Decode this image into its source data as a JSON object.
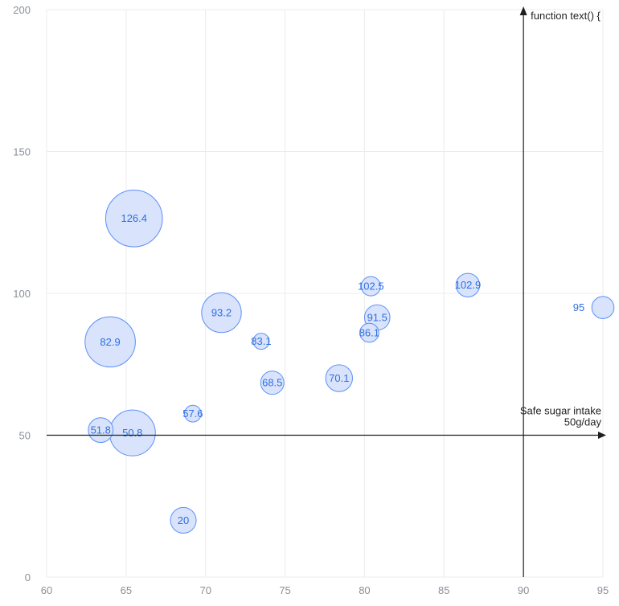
{
  "chart_data": {
    "type": "bubble",
    "title": "",
    "xlabel": "",
    "ylabel": "",
    "xlim": [
      60,
      95
    ],
    "ylim": [
      0,
      200
    ],
    "x_ticks": [
      "60",
      "65",
      "70",
      "75",
      "80",
      "85",
      "90",
      "95"
    ],
    "y_ticks": [
      "0",
      "50",
      "100",
      "150",
      "200"
    ],
    "grid": true,
    "points": [
      {
        "x": 95.0,
        "y": 95.0,
        "size": 13.8,
        "label": "95"
      },
      {
        "x": 86.5,
        "y": 102.9,
        "size": 14.7,
        "label": "102.9"
      },
      {
        "x": 80.8,
        "y": 91.5,
        "size": 15.8,
        "label": "91.5"
      },
      {
        "x": 80.4,
        "y": 102.5,
        "size": 12.0,
        "label": "102.5"
      },
      {
        "x": 80.3,
        "y": 86.1,
        "size": 11.8,
        "label": "86.1"
      },
      {
        "x": 78.4,
        "y": 70.1,
        "size": 16.7,
        "label": "70.1"
      },
      {
        "x": 74.2,
        "y": 68.5,
        "size": 14.5,
        "label": "68.5"
      },
      {
        "x": 73.5,
        "y": 83.1,
        "size": 10.0,
        "label": "83.1"
      },
      {
        "x": 71.0,
        "y": 93.2,
        "size": 24.7,
        "label": "93.2"
      },
      {
        "x": 69.2,
        "y": 57.6,
        "size": 10.4,
        "label": "57.6"
      },
      {
        "x": 68.6,
        "y": 20.0,
        "size": 16.0,
        "label": "20"
      },
      {
        "x": 65.5,
        "y": 126.4,
        "size": 35.3,
        "label": "126.4"
      },
      {
        "x": 65.4,
        "y": 50.8,
        "size": 28.5,
        "label": "50.8"
      },
      {
        "x": 64.0,
        "y": 82.9,
        "size": 31.3,
        "label": "82.9"
      },
      {
        "x": 63.4,
        "y": 51.8,
        "size": 15.4,
        "label": "51.8"
      }
    ],
    "reference_lines": [
      {
        "axis": "y",
        "value": 50,
        "label": [
          "Safe sugar intake",
          "50g/day"
        ]
      },
      {
        "axis": "x",
        "value": 90,
        "label": [
          "function text() {"
        ]
      }
    ]
  },
  "colors": {
    "bubble_fill": "#d9e3fb",
    "bubble_stroke": "#5b8ff9",
    "label": "#2f6fe0",
    "grid": "#ececec",
    "axis_text": "#8a8f99",
    "reference_line": "#1f1f1f"
  }
}
